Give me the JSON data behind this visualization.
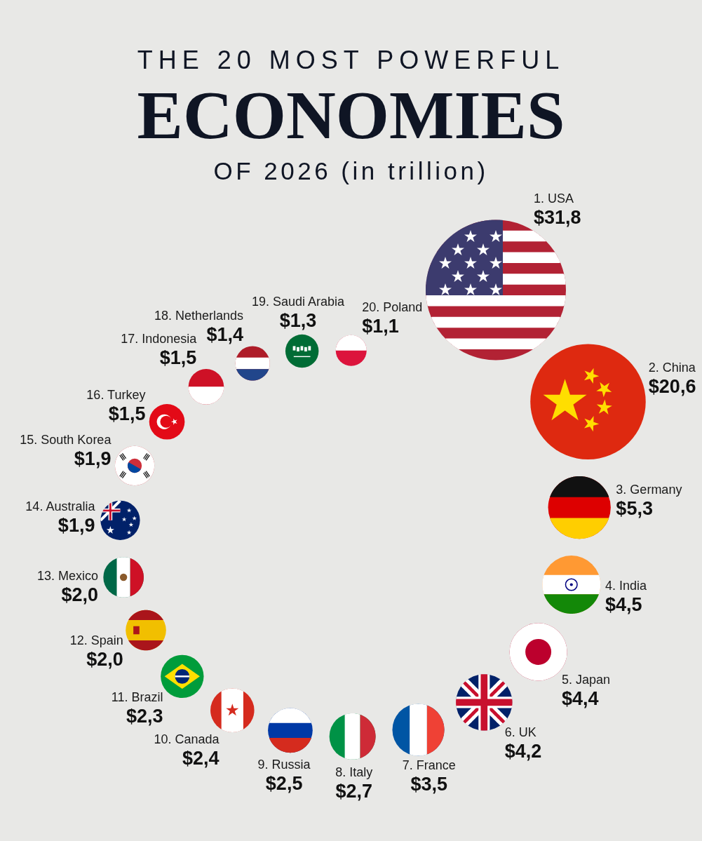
{
  "chart_data": {
    "type": "other",
    "title": "THE 20 MOST POWERFUL\nECONOMIES",
    "subtitle": "OF 2026 (in trillion)",
    "categories": [
      "1. USA",
      "2. China",
      "3. Germany",
      "4. India",
      "5. Japan",
      "6. UK",
      "7. France",
      "8. Italy",
      "9. Russia",
      "10. Canada",
      "11. Brazil",
      "12. Spain",
      "13. Mexico",
      "14. Australia",
      "15. South Korea",
      "16. Turkey",
      "17. Indonesia",
      "18. Netherlands",
      "19. Saudi Arabia",
      "20. Poland"
    ],
    "values": [
      31.8,
      20.6,
      5.3,
      4.5,
      4.4,
      4.2,
      3.5,
      2.7,
      2.5,
      2.4,
      2.3,
      2.0,
      2.0,
      1.9,
      1.9,
      1.5,
      1.5,
      1.4,
      1.3,
      1.1
    ],
    "value_labels": [
      "$31,8",
      "$20,6",
      "$5,3",
      "$4,5",
      "$4,4",
      "$4,2",
      "$3,5",
      "$2,7",
      "$2,5",
      "$2,4",
      "$2,3",
      "$2,0",
      "$2,0",
      "$1,9",
      "$1,9",
      "$1,5",
      "$1,5",
      "$1,4",
      "$1,3",
      "$1,1"
    ],
    "colors": [
      "#b22234",
      "#de2910",
      "#dd0000",
      "#ff9933",
      "#bc002d",
      "#012169",
      "#0055a4",
      "#009246",
      "#0039a6",
      "#d52b1e",
      "#009c3b",
      "#f1bf00",
      "#006847",
      "#012169",
      "#cd2e3a",
      "#e30a17",
      "#ce1126",
      "#ae1c28",
      "#006c35",
      "#dc143c"
    ]
  }
}
